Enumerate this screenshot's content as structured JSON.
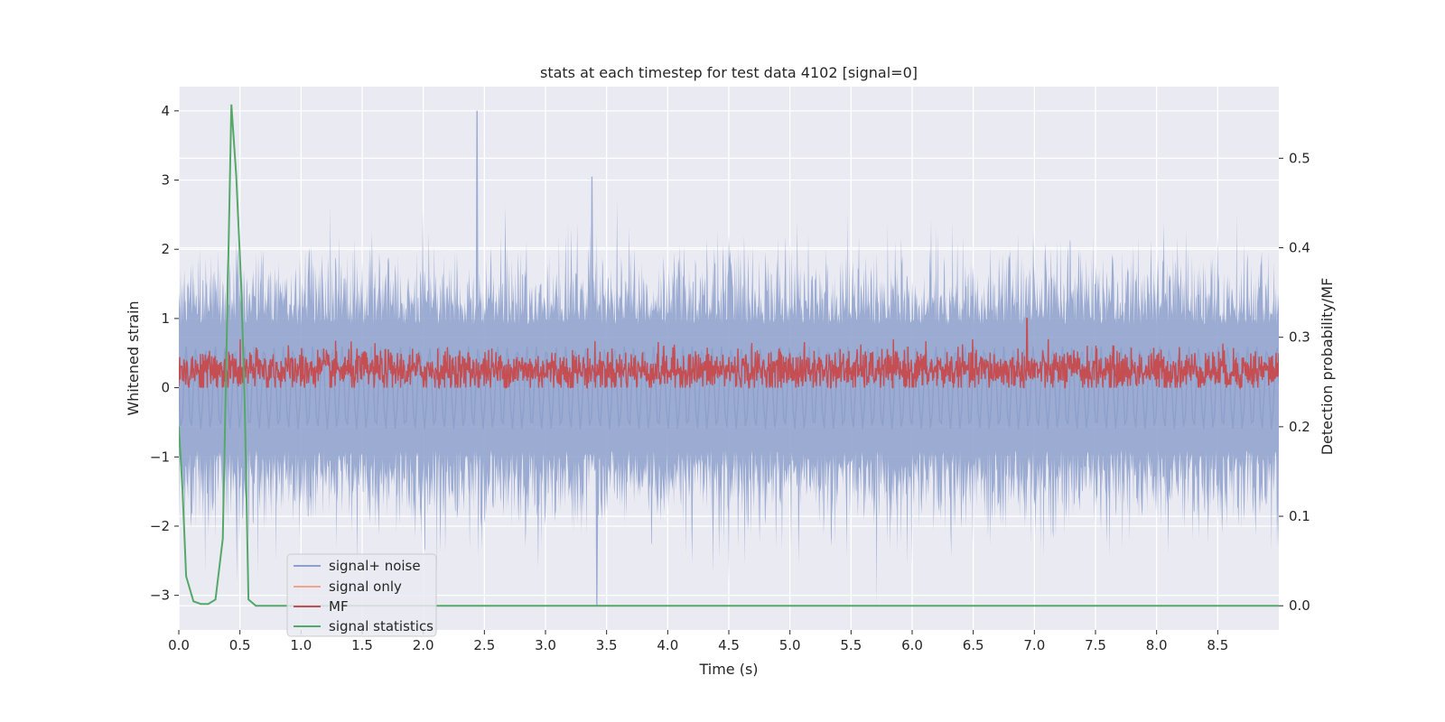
{
  "chart_data": {
    "type": "line",
    "title": "stats at each timestep for test data 4102 [signal=0]",
    "xlabel": "Time (s)",
    "ylabel": "Whitened strain",
    "y2label": "Detection probability/MF",
    "xlim": [
      0.0,
      9.0
    ],
    "ylim": [
      -3.5,
      4.35
    ],
    "y2lim": [
      -0.027,
      0.58
    ],
    "xticks": [
      "0.0",
      "0.5",
      "1.0",
      "1.5",
      "2.0",
      "2.5",
      "3.0",
      "3.5",
      "4.0",
      "4.5",
      "5.0",
      "5.5",
      "6.0",
      "6.5",
      "7.0",
      "7.5",
      "8.0",
      "8.5"
    ],
    "xtick_values": [
      0.0,
      0.5,
      1.0,
      1.5,
      2.0,
      2.5,
      3.0,
      3.5,
      4.0,
      4.5,
      5.0,
      5.5,
      6.0,
      6.5,
      7.0,
      7.5,
      8.0,
      8.5
    ],
    "yticks": [
      "4",
      "3",
      "2",
      "1",
      "0",
      "−1",
      "−2",
      "−3"
    ],
    "ytick_values": [
      4,
      3,
      2,
      1,
      0,
      -1,
      -2,
      -3
    ],
    "y2ticks": [
      "0.5",
      "0.4",
      "0.3",
      "0.2",
      "0.1",
      "0.0"
    ],
    "y2tick_values": [
      0.5,
      0.4,
      0.3,
      0.2,
      0.1,
      0.0
    ],
    "grid": true,
    "legend_position": "lower-left",
    "series": [
      {
        "name": "signal+ noise",
        "color": "#8da0cb",
        "axis": "left",
        "description_values": "noise-like strain, mostly within [-2.6, 2.4], peaks 4.0 at 2.44 s and -3.15 at 3.42 s"
      },
      {
        "name": "signal only",
        "color": "#f0a58a",
        "axis": "left",
        "values": []
      },
      {
        "name": "MF",
        "color": "#c44e52",
        "axis": "left",
        "range": [
          0.0,
          0.7
        ],
        "spike": {
          "x": 6.94,
          "y": 1.0
        }
      },
      {
        "name": "signal statistics",
        "color": "#55a868",
        "axis": "right",
        "x": [
          0.0,
          0.03,
          0.06,
          0.12,
          0.18,
          0.24,
          0.3,
          0.36,
          0.4,
          0.43,
          0.47,
          0.51,
          0.54,
          0.57,
          0.63,
          0.7,
          1.0,
          2.0,
          3.0,
          4.0,
          5.0,
          6.0,
          7.0,
          8.0,
          9.0
        ],
        "y": [
          0.2,
          0.13,
          0.033,
          0.005,
          0.002,
          0.002,
          0.007,
          0.075,
          0.35,
          0.56,
          0.48,
          0.36,
          0.22,
          0.007,
          0.0,
          0.0,
          0.0,
          0.0,
          0.0,
          0.0,
          0.0,
          0.0,
          0.0,
          0.0,
          0.0
        ]
      }
    ]
  }
}
